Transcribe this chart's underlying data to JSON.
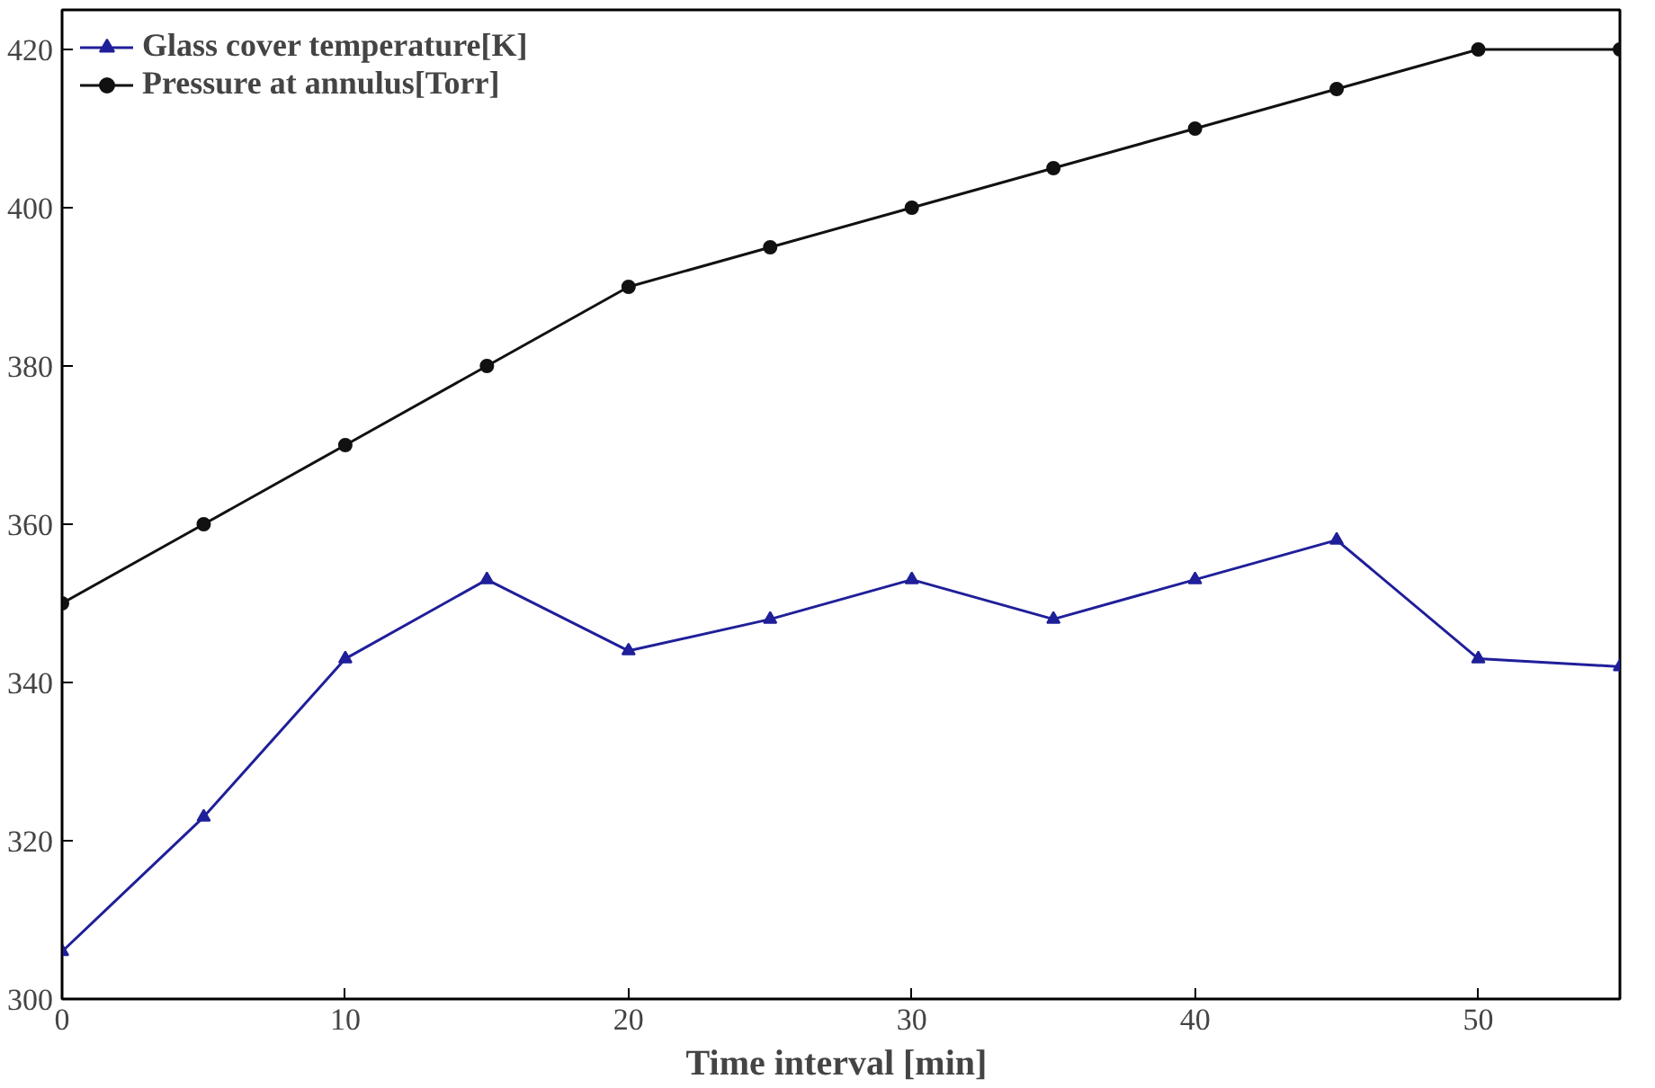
{
  "chart_data": {
    "type": "line",
    "xlabel": "Time interval  [min]",
    "x": [
      0,
      5,
      10,
      15,
      20,
      25,
      30,
      35,
      40,
      45,
      50,
      55
    ],
    "series": [
      {
        "name": "Glass cover temperature[K]",
        "color": "#1f1f9a",
        "marker": "triangle",
        "values": [
          306,
          323,
          343,
          353,
          344,
          348,
          353,
          348,
          353,
          358,
          343,
          342
        ]
      },
      {
        "name": "Pressure at annulus[Torr]",
        "color": "#111111",
        "marker": "circle",
        "values": [
          350,
          360,
          370,
          380,
          390,
          395,
          400,
          405,
          410,
          415,
          420,
          420
        ]
      }
    ],
    "xlim": [
      0,
      55
    ],
    "xticks": [
      0,
      10,
      20,
      30,
      40,
      50
    ],
    "ylim": [
      300,
      425
    ],
    "yticks": [
      300,
      320,
      340,
      360,
      380,
      400,
      420
    ],
    "grid": false,
    "legend": "top left",
    "line_style": "solid"
  }
}
